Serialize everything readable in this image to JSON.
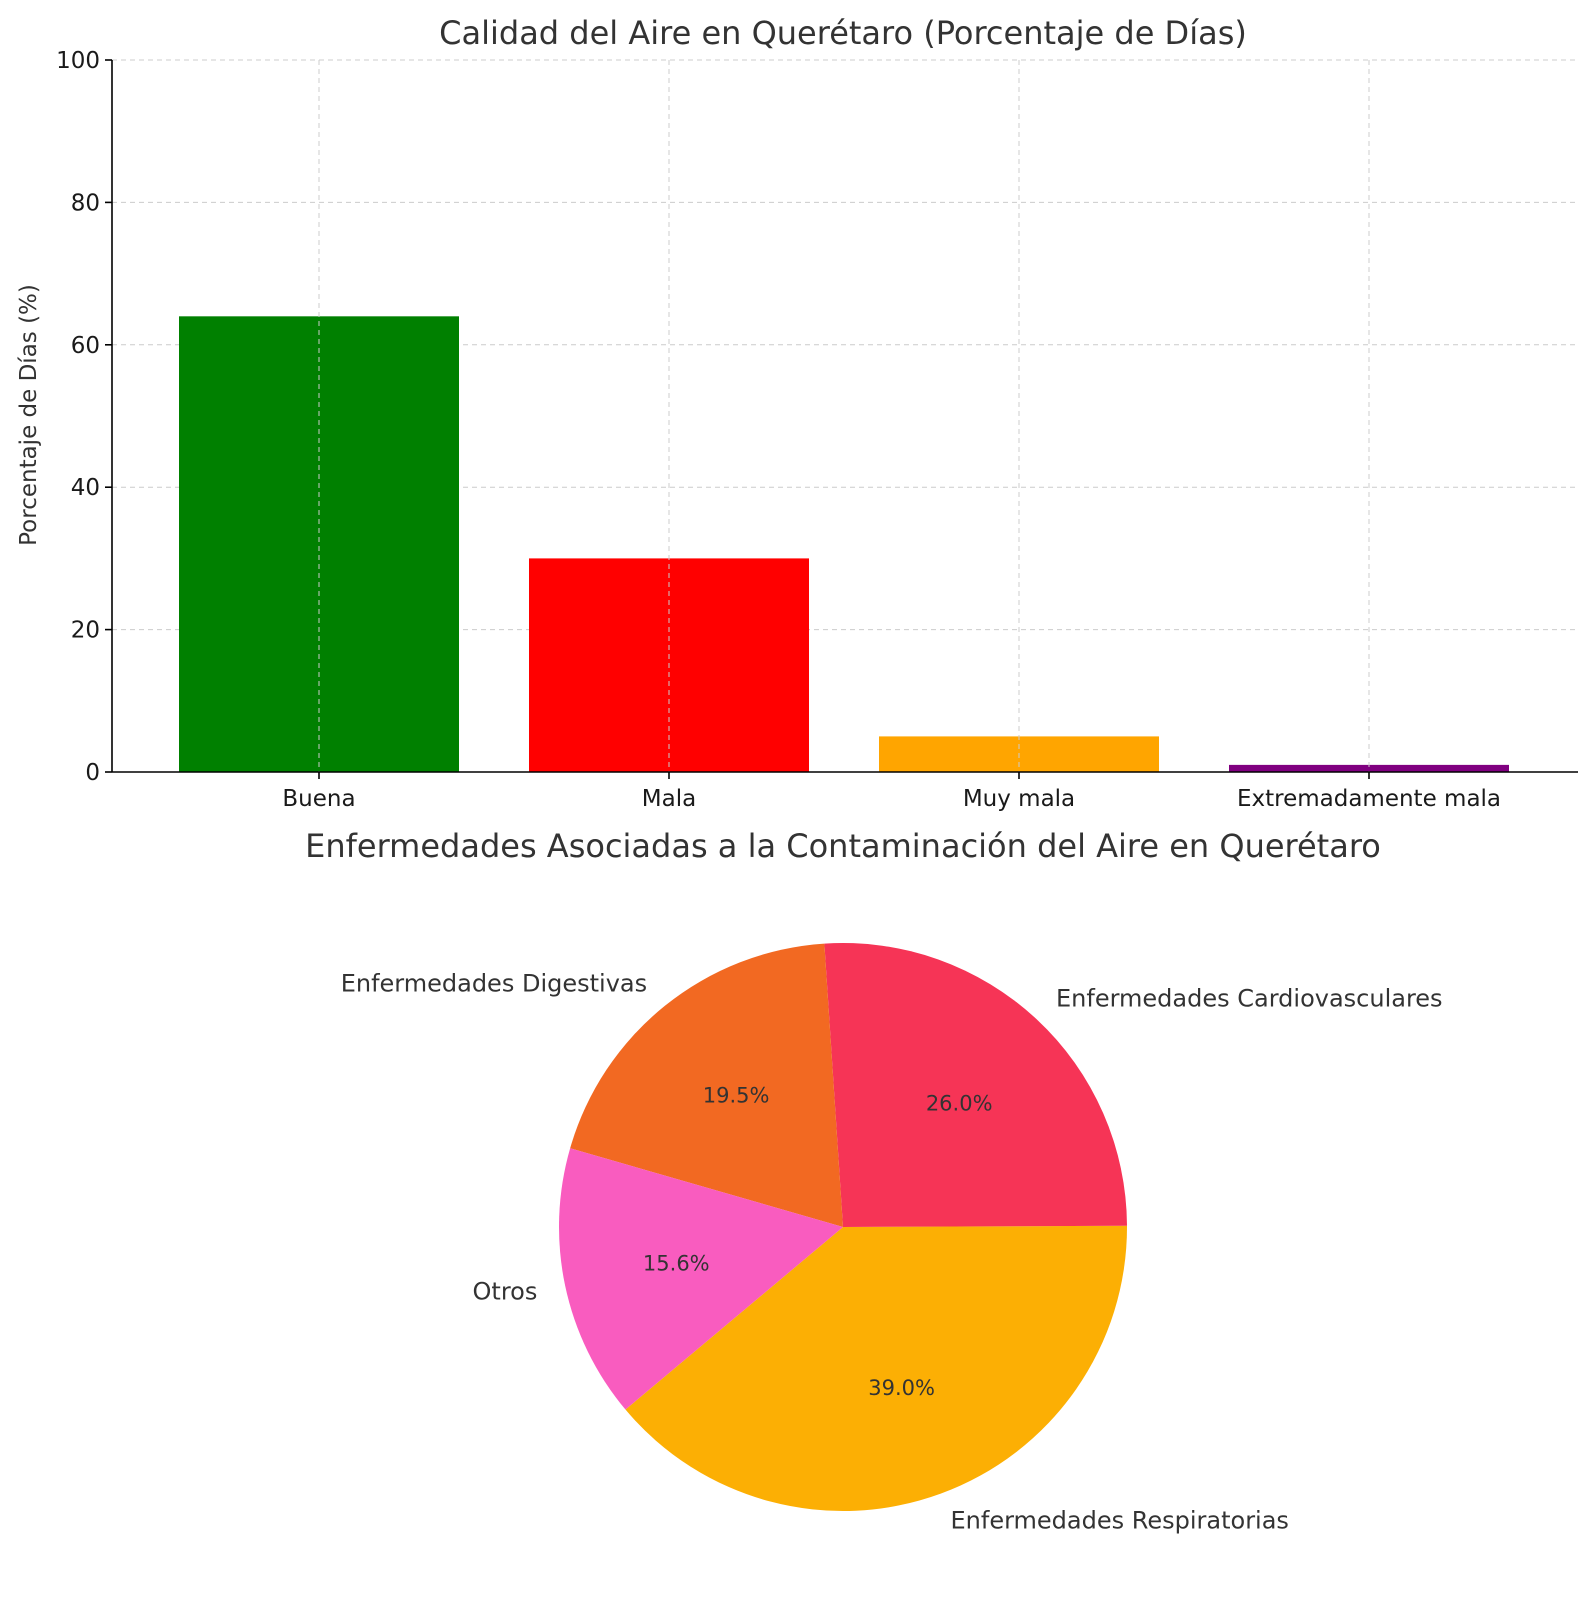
{
  "chart_data": [
    {
      "type": "bar",
      "title": "Calidad del Aire en Querétaro (Porcentaje de Días)",
      "xlabel": "",
      "ylabel": "Porcentaje de Días (%)",
      "categories": [
        "Buena",
        "Mala",
        "Muy mala",
        "Extremadamente mala"
      ],
      "values": [
        64,
        30,
        5,
        1
      ],
      "colors": [
        "#008000",
        "#ff0000",
        "#ffa500",
        "#800080"
      ],
      "ylim": [
        0,
        100
      ],
      "yticks": [
        0,
        20,
        40,
        60,
        80,
        100
      ],
      "grid": true
    },
    {
      "type": "pie",
      "title": "Enfermedades Asociadas a la Contaminación del Aire en Querétaro",
      "slices": [
        {
          "label": "Enfermedades Respiratorias",
          "value": 39.0,
          "pct_label": "39.0%",
          "color": "#fcaf04"
        },
        {
          "label": "Enfermedades Cardiovasculares",
          "value": 26.0,
          "pct_label": "26.0%",
          "color": "#f63456"
        },
        {
          "label": "Enfermedades Digestivas",
          "value": 19.5,
          "pct_label": "19.5%",
          "color": "#f26922"
        },
        {
          "label": "Otros",
          "value": 15.6,
          "pct_label": "15.6%",
          "color": "#f95cbf"
        }
      ]
    }
  ]
}
